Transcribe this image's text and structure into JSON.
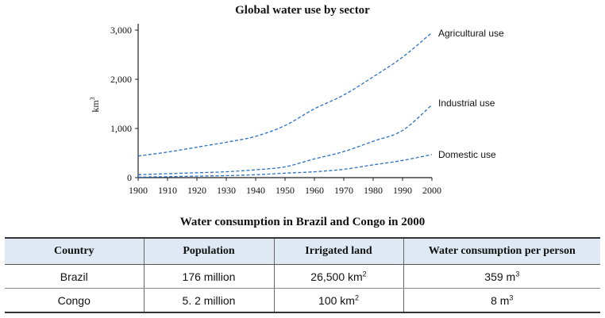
{
  "chart_data": {
    "type": "line",
    "title": "Global water use by sector",
    "ylabel": "km",
    "ylabel_superscript": "3",
    "x": [
      1900,
      1910,
      1920,
      1930,
      1940,
      1950,
      1960,
      1970,
      1980,
      1990,
      2000
    ],
    "xlim": [
      1900,
      2000
    ],
    "ylim": [
      0,
      3000
    ],
    "y_ticks": [
      "3,000",
      "2,000",
      "1,000",
      "0"
    ],
    "y_tick_values": [
      3000,
      2000,
      1000,
      0
    ],
    "x_ticks": [
      "1900",
      "1910",
      "1920",
      "1930",
      "1940",
      "1950",
      "1960",
      "1970",
      "1980",
      "1990",
      "2000"
    ],
    "grid": false,
    "line_style": "dashed",
    "series_color": "#2a6fc0",
    "series": [
      {
        "name": "Agricultural use",
        "values": [
          440,
          520,
          620,
          720,
          840,
          1060,
          1400,
          1680,
          2050,
          2450,
          2950
        ]
      },
      {
        "name": "Industrial use",
        "values": [
          60,
          80,
          100,
          120,
          160,
          220,
          380,
          530,
          740,
          960,
          1480
        ]
      },
      {
        "name": "Domestic use",
        "values": [
          10,
          20,
          30,
          40,
          60,
          90,
          120,
          170,
          260,
          350,
          470
        ]
      }
    ]
  },
  "table": {
    "title": "Water consumption in Brazil and Congo in 2000",
    "headers": [
      "Country",
      "Population",
      "Irrigated land",
      "Water consumption per person"
    ],
    "rows": [
      {
        "country": "Brazil",
        "population": "176 million",
        "irrigated": "26,500 km",
        "irrigated_sup": "2",
        "consumption": "359 m",
        "consumption_sup": "3"
      },
      {
        "country": "Congo",
        "population": "5. 2 million",
        "irrigated": "100 km",
        "irrigated_sup": "2",
        "consumption": "8 m",
        "consumption_sup": "3"
      }
    ]
  }
}
